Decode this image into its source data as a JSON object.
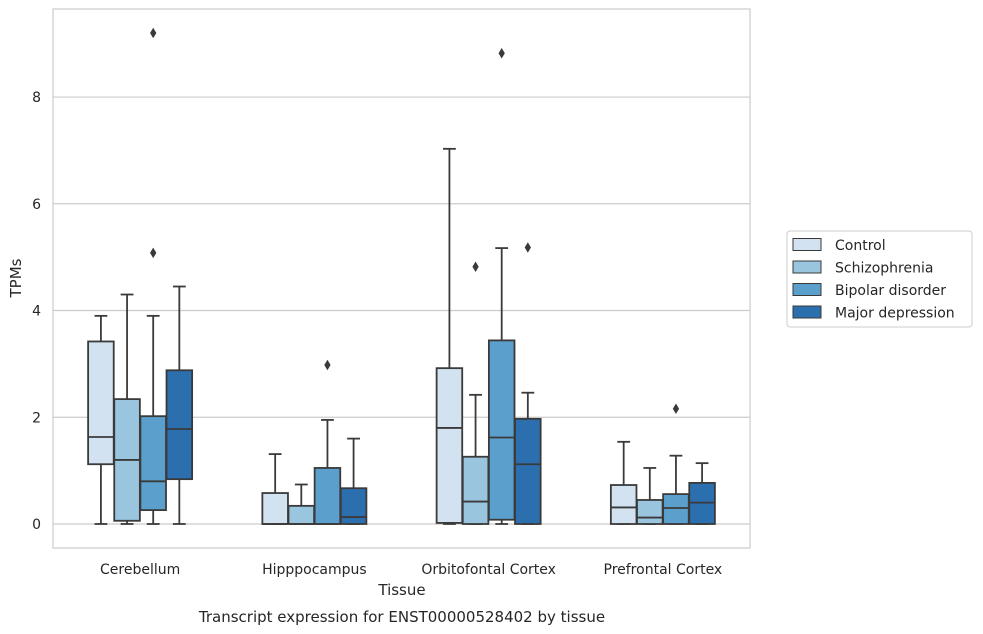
{
  "caption": "Transcript expression for ENST00000528402 by tissue",
  "chart_data": {
    "type": "box",
    "title": "",
    "xlabel": "Tissue",
    "ylabel": "TPMs",
    "ylim": [
      -0.45,
      9.65
    ],
    "yticks": [
      0,
      2,
      4,
      6,
      8
    ],
    "grid": "horizontal",
    "legend_position": "right",
    "categories": [
      "Cerebellum",
      "Hipppocampus",
      "Orbitofontal Cortex",
      "Prefrontal Cortex"
    ],
    "series": [
      {
        "name": "Control",
        "color": "#d2e2f0",
        "boxes": [
          {
            "whisker_low": 0.0,
            "q1": 1.12,
            "median": 1.63,
            "q3": 3.42,
            "whisker_high": 3.9,
            "outliers": []
          },
          {
            "whisker_low": 0.0,
            "q1": 0.0,
            "median": 0.0,
            "q3": 0.58,
            "whisker_high": 1.31,
            "outliers": []
          },
          {
            "whisker_low": 0.0,
            "q1": 0.02,
            "median": 1.8,
            "q3": 2.92,
            "whisker_high": 7.03,
            "outliers": []
          },
          {
            "whisker_low": 0.0,
            "q1": 0.0,
            "median": 0.31,
            "q3": 0.73,
            "whisker_high": 1.54,
            "outliers": []
          }
        ]
      },
      {
        "name": "Schizophrenia",
        "color": "#9ac5de",
        "boxes": [
          {
            "whisker_low": 0.0,
            "q1": 0.06,
            "median": 1.2,
            "q3": 2.34,
            "whisker_high": 4.3,
            "outliers": []
          },
          {
            "whisker_low": 0.0,
            "q1": 0.0,
            "median": 0.0,
            "q3": 0.34,
            "whisker_high": 0.74,
            "outliers": []
          },
          {
            "whisker_low": 0.0,
            "q1": 0.0,
            "median": 0.42,
            "q3": 1.26,
            "whisker_high": 2.42,
            "outliers": [
              4.82
            ]
          },
          {
            "whisker_low": 0.0,
            "q1": 0.0,
            "median": 0.12,
            "q3": 0.45,
            "whisker_high": 1.05,
            "outliers": []
          }
        ]
      },
      {
        "name": "Bipolar disorder",
        "color": "#5b9fcd",
        "boxes": [
          {
            "whisker_low": 0.0,
            "q1": 0.26,
            "median": 0.8,
            "q3": 2.02,
            "whisker_high": 3.9,
            "outliers": [
              5.08,
              9.2
            ]
          },
          {
            "whisker_low": 0.0,
            "q1": 0.0,
            "median": 0.0,
            "q3": 1.05,
            "whisker_high": 1.95,
            "outliers": [
              2.98
            ]
          },
          {
            "whisker_low": 0.0,
            "q1": 0.08,
            "median": 1.62,
            "q3": 3.44,
            "whisker_high": 5.17,
            "outliers": [
              8.82
            ]
          },
          {
            "whisker_low": 0.0,
            "q1": 0.0,
            "median": 0.3,
            "q3": 0.56,
            "whisker_high": 1.28,
            "outliers": [
              2.16
            ]
          }
        ]
      },
      {
        "name": "Major depression",
        "color": "#2c6fae",
        "boxes": [
          {
            "whisker_low": 0.0,
            "q1": 0.84,
            "median": 1.78,
            "q3": 2.88,
            "whisker_high": 4.45,
            "outliers": []
          },
          {
            "whisker_low": 0.0,
            "q1": 0.0,
            "median": 0.13,
            "q3": 0.67,
            "whisker_high": 1.6,
            "outliers": []
          },
          {
            "whisker_low": 0.0,
            "q1": 0.0,
            "median": 1.12,
            "q3": 1.97,
            "whisker_high": 2.46,
            "outliers": [
              5.18
            ]
          },
          {
            "whisker_low": 0.0,
            "q1": 0.0,
            "median": 0.4,
            "q3": 0.77,
            "whisker_high": 1.14,
            "outliers": []
          }
        ]
      }
    ]
  }
}
